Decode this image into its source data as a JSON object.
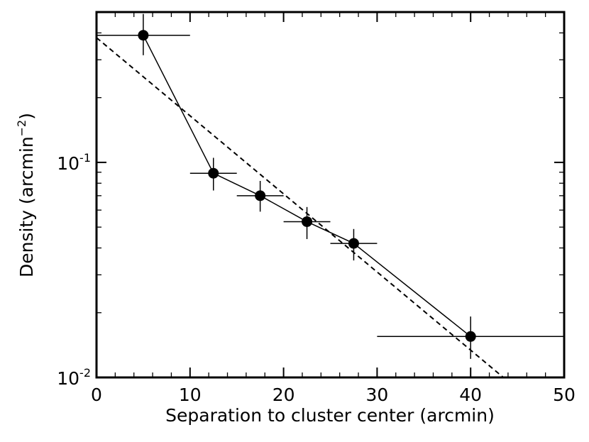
{
  "chart_data": {
    "type": "scatter",
    "title": "",
    "xlabel": "Separation to cluster center (arcmin)",
    "ylabel": {
      "prefix": "Density (arcmin",
      "superscript": "−2",
      "suffix": ")"
    },
    "xlim": [
      0,
      50
    ],
    "ylim": [
      0.01,
      0.5
    ],
    "xscale": "linear",
    "yscale": "log",
    "grid": false,
    "legend": "none",
    "x_ticks": [
      {
        "value": 0,
        "label": "0"
      },
      {
        "value": 10,
        "label": "10"
      },
      {
        "value": 20,
        "label": "20"
      },
      {
        "value": 30,
        "label": "30"
      },
      {
        "value": 40,
        "label": "40"
      },
      {
        "value": 50,
        "label": "50"
      }
    ],
    "y_ticks": [
      {
        "value": 0.1,
        "base": "10",
        "exponent": "-1"
      },
      {
        "value": 0.01,
        "base": "10",
        "exponent": "-2"
      }
    ],
    "series": [
      {
        "style": "points-with-line",
        "color": "#000000",
        "x": [
          5,
          12.5,
          17.5,
          22.5,
          27.5,
          40
        ],
        "y": [
          0.39,
          0.089,
          0.07,
          0.053,
          0.042,
          0.0155
        ],
        "x_err": [
          5,
          2.5,
          2.5,
          2.5,
          2.5,
          10
        ],
        "y_err_low": [
          0.075,
          0.015,
          0.011,
          0.009,
          0.007,
          0.0033
        ],
        "y_err_high": [
          0.1,
          0.016,
          0.012,
          0.009,
          0.007,
          0.0037
        ]
      },
      {
        "style": "dashed-fit",
        "color": "#000000",
        "x": [
          0,
          43.5
        ],
        "y": [
          0.38,
          0.01
        ]
      }
    ]
  }
}
